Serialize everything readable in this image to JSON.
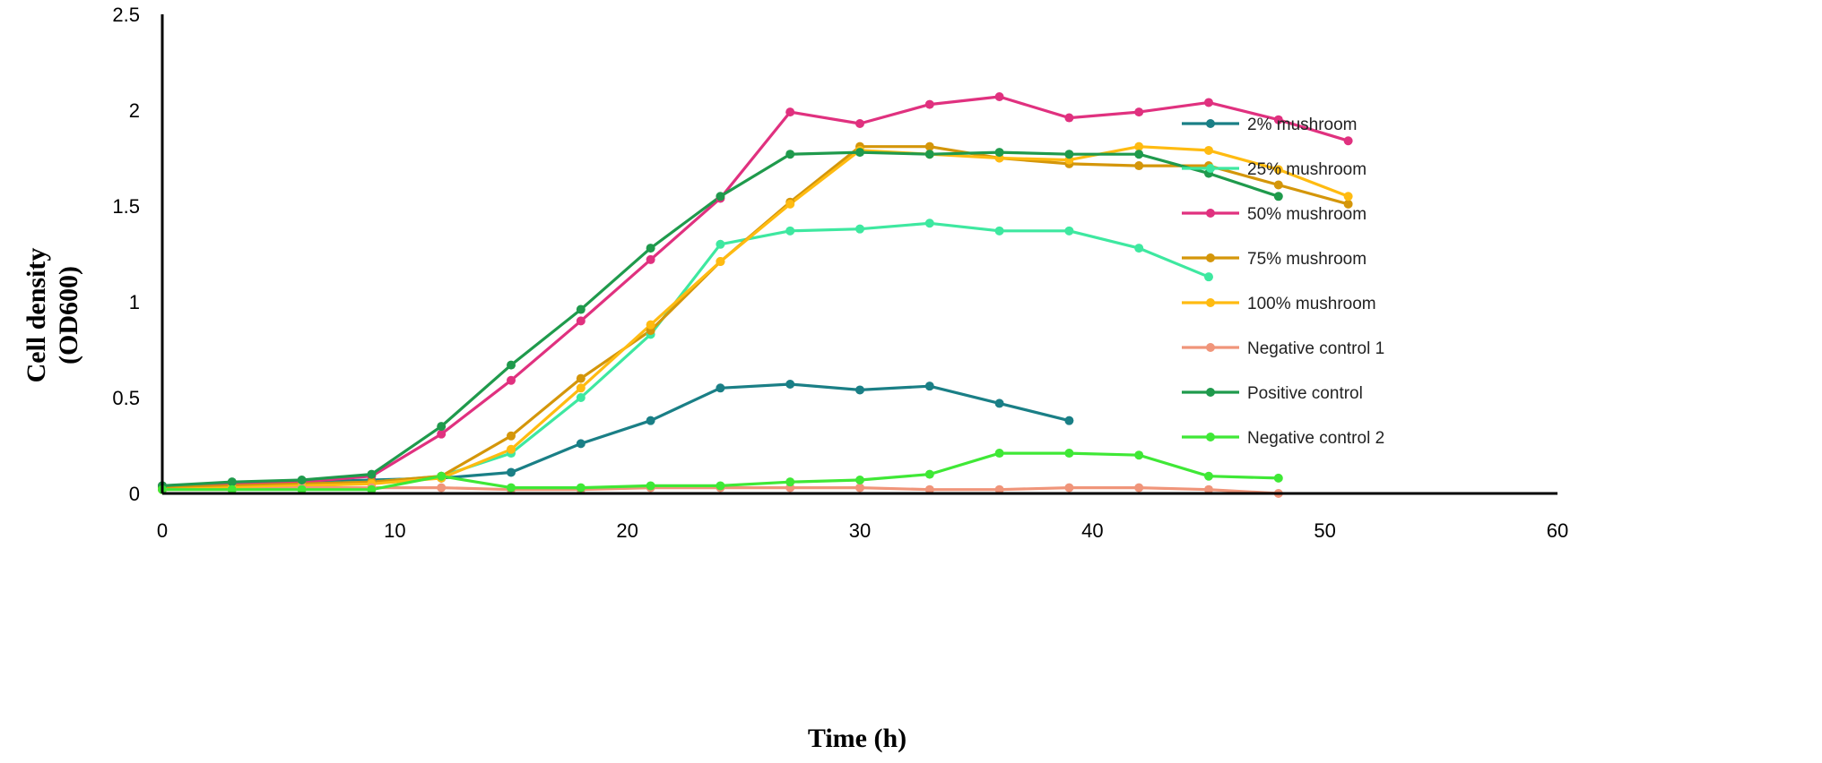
{
  "chart_data": {
    "type": "line",
    "title": "",
    "xlabel": "Time (h)",
    "ylabel_line1": "Cell density",
    "ylabel_line2": "(OD600)",
    "xlim": [
      0,
      60
    ],
    "ylim": [
      0,
      2.5
    ],
    "xticks": [
      0,
      10,
      20,
      30,
      40,
      50,
      60
    ],
    "yticks": [
      0,
      0.5,
      1,
      1.5,
      2,
      2.5
    ],
    "xtick_labels": [
      "0",
      "10",
      "20",
      "30",
      "40",
      "50",
      "60"
    ],
    "ytick_labels": [
      "0",
      "0.5",
      "1",
      "1.5",
      "2",
      "2.5"
    ],
    "legend_position": "right",
    "grid": false,
    "series": [
      {
        "name": "2% mushroom",
        "color": "#1a7f86",
        "x": [
          0,
          3,
          6,
          9,
          12,
          15,
          18,
          21,
          24,
          27,
          30,
          33,
          36,
          39
        ],
        "y": [
          0.04,
          0.05,
          0.06,
          0.07,
          0.08,
          0.11,
          0.26,
          0.38,
          0.55,
          0.57,
          0.54,
          0.56,
          0.47,
          0.38
        ]
      },
      {
        "name": "25% mushroom",
        "color": "#3ee8a0",
        "x": [
          0,
          3,
          6,
          9,
          12,
          15,
          18,
          21,
          24,
          27,
          30,
          33,
          36,
          39,
          42,
          45
        ],
        "y": [
          0.03,
          0.04,
          0.05,
          0.06,
          0.09,
          0.21,
          0.5,
          0.83,
          1.3,
          1.37,
          1.38,
          1.41,
          1.37,
          1.37,
          1.28,
          1.13
        ]
      },
      {
        "name": "50% mushroom",
        "color": "#e0317f",
        "x": [
          0,
          3,
          6,
          9,
          12,
          15,
          18,
          21,
          24,
          27,
          30,
          33,
          36,
          39,
          42,
          45,
          48,
          51
        ],
        "y": [
          0.04,
          0.05,
          0.06,
          0.09,
          0.31,
          0.59,
          0.9,
          1.22,
          1.54,
          1.99,
          1.93,
          2.03,
          2.07,
          1.96,
          1.99,
          2.04,
          1.95,
          1.84
        ]
      },
      {
        "name": "75% mushroom",
        "color": "#d4960a",
        "x": [
          0,
          3,
          6,
          9,
          12,
          15,
          18,
          21,
          24,
          27,
          30,
          33,
          36,
          39,
          42,
          45,
          48,
          51
        ],
        "y": [
          0.03,
          0.04,
          0.05,
          0.06,
          0.09,
          0.3,
          0.6,
          0.85,
          1.21,
          1.52,
          1.81,
          1.81,
          1.75,
          1.72,
          1.71,
          1.71,
          1.61,
          1.51
        ]
      },
      {
        "name": "100% mushroom",
        "color": "#ffbb11",
        "x": [
          0,
          3,
          6,
          9,
          12,
          15,
          18,
          21,
          24,
          27,
          30,
          33,
          36,
          39,
          42,
          45,
          48,
          51
        ],
        "y": [
          0.02,
          0.03,
          0.04,
          0.05,
          0.08,
          0.23,
          0.55,
          0.88,
          1.21,
          1.51,
          1.79,
          1.77,
          1.75,
          1.74,
          1.81,
          1.79,
          1.69,
          1.55
        ]
      },
      {
        "name": "Negative control 1",
        "color": "#f0957a",
        "x": [
          0,
          3,
          6,
          9,
          12,
          15,
          18,
          21,
          24,
          27,
          30,
          33,
          36,
          39,
          42,
          45,
          48
        ],
        "y": [
          0.02,
          0.02,
          0.03,
          0.03,
          0.03,
          0.02,
          0.02,
          0.03,
          0.03,
          0.03,
          0.03,
          0.02,
          0.02,
          0.03,
          0.03,
          0.02,
          0.0
        ]
      },
      {
        "name": "Positive control",
        "color": "#1f9a4c",
        "x": [
          0,
          3,
          6,
          9,
          12,
          15,
          18,
          21,
          24,
          27,
          30,
          33,
          36,
          39,
          42,
          45,
          48
        ],
        "y": [
          0.04,
          0.06,
          0.07,
          0.1,
          0.35,
          0.67,
          0.96,
          1.28,
          1.55,
          1.77,
          1.78,
          1.77,
          1.78,
          1.77,
          1.77,
          1.67,
          1.55
        ]
      },
      {
        "name": "Negative control 2",
        "color": "#3fe836",
        "x": [
          0,
          3,
          6,
          9,
          12,
          15,
          18,
          21,
          24,
          27,
          30,
          33,
          36,
          39,
          42,
          45,
          48
        ],
        "y": [
          0.02,
          0.02,
          0.02,
          0.02,
          0.09,
          0.03,
          0.03,
          0.04,
          0.04,
          0.06,
          0.07,
          0.1,
          0.21,
          0.21,
          0.2,
          0.09,
          0.08
        ]
      }
    ]
  }
}
